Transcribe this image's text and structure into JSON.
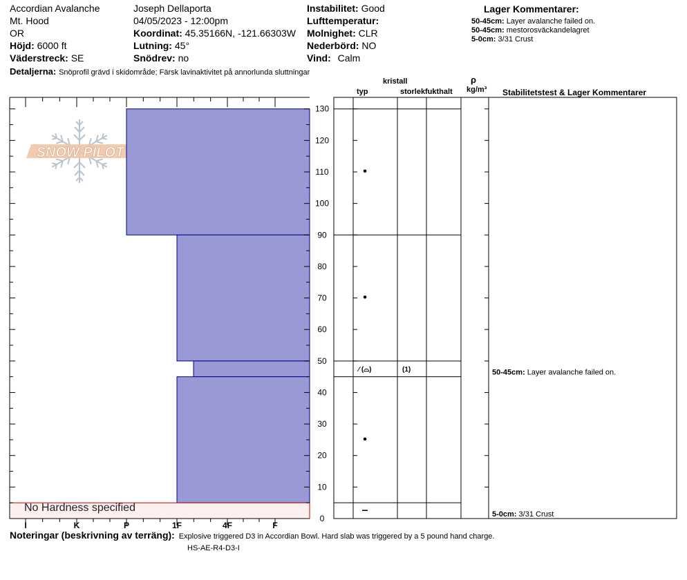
{
  "header": {
    "location_name": "Accordian Avalanche",
    "region": "Mt. Hood",
    "state": "OR",
    "elevation_label": "Höjd:",
    "elevation": "6000 ft",
    "aspect_label": "Väderstreck:",
    "aspect": "SE",
    "observer": "Joseph Dellaporta",
    "datetime": "04/05/2023 - 12:00pm",
    "coord_label": "Koordinat:",
    "coord": "45.35166N, -121.66303W",
    "slope_label": "Lutning:",
    "slope": "45°",
    "wind_loading_label": "Snödrev:",
    "wind_loading": "no",
    "stability_label": "Instabilitet:",
    "stability": "Good",
    "air_temp_label": "Lufttemperatur:",
    "air_temp": "",
    "sky_label": "Molnighet:",
    "sky": "CLR",
    "precip_label": "Nederbörd:",
    "precip": "NO",
    "wind_label": "Vind:",
    "wind": "Calm",
    "details_label": "Detaljerna:",
    "details": "Snöprofil grävd i skidområde; Färsk lavinaktivitet på annorlunda sluttningar"
  },
  "layer_comments": {
    "title": "Lager Kommentarer:",
    "items": [
      {
        "range": "50-45cm:",
        "text": "Layer avalanche failed on."
      },
      {
        "range": "50-45cm:",
        "text": "mestorosväckandelagret"
      },
      {
        "range": "5-0cm:",
        "text": "3/31 Crust"
      }
    ]
  },
  "columns": {
    "crystal": "kristall",
    "type": "typ",
    "size": "storlek",
    "moisture": "fukthalt",
    "rho": "ρ",
    "density_unit": "kg/m³",
    "stability_title": "Stabilitetstest & Lager Kommentarer"
  },
  "logo_text": "SNOW PILOT",
  "no_hardness": "No Hardness specified",
  "table_entries": [
    {
      "depth": 110,
      "grain": "•"
    },
    {
      "depth": 70,
      "grain": "•"
    },
    {
      "depth": 47.5,
      "grain": "⁄ (⌓)",
      "size": "(1)"
    },
    {
      "depth": 25,
      "grain": "•"
    },
    {
      "depth": 2.5,
      "grain": "–"
    }
  ],
  "right_comments": [
    {
      "depth": 45,
      "range": "50-45cm:",
      "text": "Layer avalanche failed on."
    },
    {
      "depth": 0,
      "range": "5-0cm:",
      "text": "3/31 Crust"
    }
  ],
  "notes": {
    "label": "Noteringar (beskrivning av terräng):",
    "text": "Explosive triggered D3 in Accordian Bowl. Hard slab was triggered by a 5 pound hand charge.",
    "code": "HS-AE-R4-D3-I"
  },
  "colors": {
    "layer_fill": "#9999d6",
    "layer_stroke": "#00008b",
    "no_hardness_fill": "#fff0f0",
    "no_hardness_stroke": "#cc0000"
  },
  "chart_data": {
    "type": "bar",
    "orientation": "horizontal",
    "xlabel": "",
    "ylabel": "",
    "hardness_ticks": [
      "I",
      "K",
      "P",
      "1F",
      "4F",
      "F"
    ],
    "ylim": [
      0,
      130
    ],
    "yticks": [
      0,
      10,
      20,
      30,
      40,
      50,
      60,
      70,
      80,
      90,
      100,
      110,
      120,
      130
    ],
    "layers": [
      {
        "top": 130,
        "bottom": 90,
        "hardness": "P"
      },
      {
        "top": 90,
        "bottom": 50,
        "hardness": "1F"
      },
      {
        "top": 50,
        "bottom": 45,
        "hardness": "1F+"
      },
      {
        "top": 45,
        "bottom": 5,
        "hardness": "1F"
      },
      {
        "top": 5,
        "bottom": 0,
        "hardness": "No Hardness specified"
      }
    ]
  }
}
